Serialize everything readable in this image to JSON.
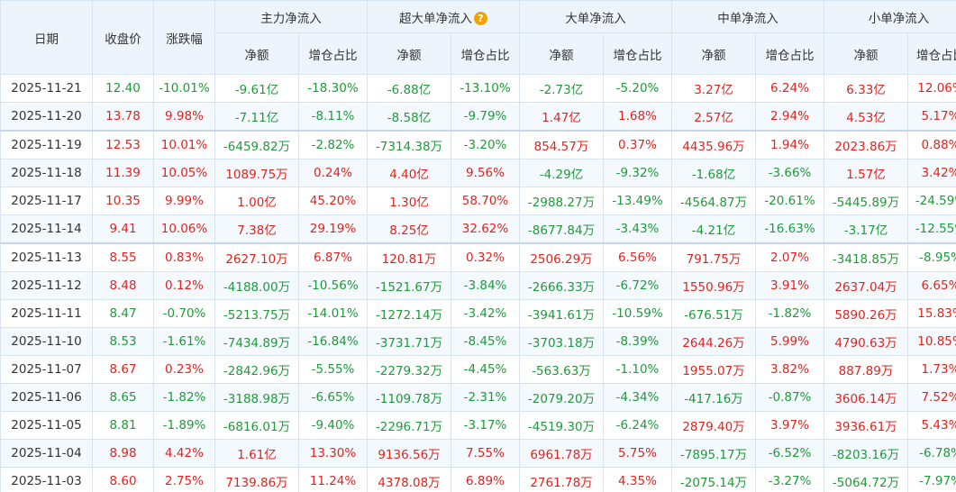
{
  "colors": {
    "up": "#e3221d",
    "down": "#1e9a3a",
    "header_bg": "#edf4fc"
  },
  "header": {
    "date": "日期",
    "close": "收盘价",
    "change": "涨跌幅",
    "groups": [
      {
        "label": "主力净流入",
        "help": false
      },
      {
        "label": "超大单净流入",
        "help": true
      },
      {
        "label": "大单净流入",
        "help": false
      },
      {
        "label": "中单净流入",
        "help": false
      },
      {
        "label": "小单净流入",
        "help": false
      }
    ],
    "sub": {
      "net": "净额",
      "ratio": "增仓占比"
    },
    "help_icon": "question-mark-icon",
    "help_glyph": "?"
  },
  "rows": [
    {
      "date": "2025-11-21",
      "close": "12.40",
      "change": "-10.01%",
      "main": [
        "-9.61亿",
        "-18.30%"
      ],
      "xl": [
        "-6.88亿",
        "-13.10%"
      ],
      "l": [
        "-2.73亿",
        "-5.20%"
      ],
      "m": [
        "3.27亿",
        "6.24%"
      ],
      "s": [
        "6.33亿",
        "12.06%"
      ]
    },
    {
      "date": "2025-11-20",
      "close": "13.78",
      "change": "9.98%",
      "main": [
        "-7.11亿",
        "-8.11%"
      ],
      "xl": [
        "-8.58亿",
        "-9.79%"
      ],
      "l": [
        "1.47亿",
        "1.68%"
      ],
      "m": [
        "2.57亿",
        "2.94%"
      ],
      "s": [
        "4.53亿",
        "5.17%"
      ]
    },
    {
      "date": "2025-11-19",
      "close": "12.53",
      "change": "10.01%",
      "main": [
        "-6459.82万",
        "-2.82%"
      ],
      "xl": [
        "-7314.38万",
        "-3.20%"
      ],
      "l": [
        "854.57万",
        "0.37%"
      ],
      "m": [
        "4435.96万",
        "1.94%"
      ],
      "s": [
        "2023.86万",
        "0.88%"
      ]
    },
    {
      "date": "2025-11-18",
      "close": "11.39",
      "change": "10.05%",
      "main": [
        "1089.75万",
        "0.24%"
      ],
      "xl": [
        "4.40亿",
        "9.56%"
      ],
      "l": [
        "-4.29亿",
        "-9.32%"
      ],
      "m": [
        "-1.68亿",
        "-3.66%"
      ],
      "s": [
        "1.57亿",
        "3.42%"
      ]
    },
    {
      "date": "2025-11-17",
      "close": "10.35",
      "change": "9.99%",
      "main": [
        "1.00亿",
        "45.20%"
      ],
      "xl": [
        "1.30亿",
        "58.70%"
      ],
      "l": [
        "-2988.27万",
        "-13.49%"
      ],
      "m": [
        "-4564.87万",
        "-20.61%"
      ],
      "s": [
        "-5445.89万",
        "-24.59%"
      ]
    },
    {
      "date": "2025-11-14",
      "close": "9.41",
      "change": "10.06%",
      "main": [
        "7.38亿",
        "29.19%"
      ],
      "xl": [
        "8.25亿",
        "32.62%"
      ],
      "l": [
        "-8677.84万",
        "-3.43%"
      ],
      "m": [
        "-4.21亿",
        "-16.63%"
      ],
      "s": [
        "-3.17亿",
        "-12.55%"
      ]
    },
    {
      "date": "2025-11-13",
      "close": "8.55",
      "change": "0.83%",
      "main": [
        "2627.10万",
        "6.87%"
      ],
      "xl": [
        "120.81万",
        "0.32%"
      ],
      "l": [
        "2506.29万",
        "6.56%"
      ],
      "m": [
        "791.75万",
        "2.07%"
      ],
      "s": [
        "-3418.85万",
        "-8.95%"
      ]
    },
    {
      "date": "2025-11-12",
      "close": "8.48",
      "change": "0.12%",
      "main": [
        "-4188.00万",
        "-10.56%"
      ],
      "xl": [
        "-1521.67万",
        "-3.84%"
      ],
      "l": [
        "-2666.33万",
        "-6.72%"
      ],
      "m": [
        "1550.96万",
        "3.91%"
      ],
      "s": [
        "2637.04万",
        "6.65%"
      ]
    },
    {
      "date": "2025-11-11",
      "close": "8.47",
      "change": "-0.70%",
      "main": [
        "-5213.75万",
        "-14.01%"
      ],
      "xl": [
        "-1272.14万",
        "-3.42%"
      ],
      "l": [
        "-3941.61万",
        "-10.59%"
      ],
      "m": [
        "-676.51万",
        "-1.82%"
      ],
      "s": [
        "5890.26万",
        "15.83%"
      ]
    },
    {
      "date": "2025-11-10",
      "close": "8.53",
      "change": "-1.61%",
      "main": [
        "-7434.89万",
        "-16.84%"
      ],
      "xl": [
        "-3731.71万",
        "-8.45%"
      ],
      "l": [
        "-3703.18万",
        "-8.39%"
      ],
      "m": [
        "2644.26万",
        "5.99%"
      ],
      "s": [
        "4790.63万",
        "10.85%"
      ]
    },
    {
      "date": "2025-11-07",
      "close": "8.67",
      "change": "0.23%",
      "main": [
        "-2842.96万",
        "-5.55%"
      ],
      "xl": [
        "-2279.32万",
        "-4.45%"
      ],
      "l": [
        "-563.63万",
        "-1.10%"
      ],
      "m": [
        "1955.07万",
        "3.82%"
      ],
      "s": [
        "887.89万",
        "1.73%"
      ]
    },
    {
      "date": "2025-11-06",
      "close": "8.65",
      "change": "-1.82%",
      "main": [
        "-3188.98万",
        "-6.65%"
      ],
      "xl": [
        "-1109.78万",
        "-2.31%"
      ],
      "l": [
        "-2079.20万",
        "-4.34%"
      ],
      "m": [
        "-417.16万",
        "-0.87%"
      ],
      "s": [
        "3606.14万",
        "7.52%"
      ]
    },
    {
      "date": "2025-11-05",
      "close": "8.81",
      "change": "-1.89%",
      "main": [
        "-6816.01万",
        "-9.40%"
      ],
      "xl": [
        "-2296.71万",
        "-3.17%"
      ],
      "l": [
        "-4519.30万",
        "-6.24%"
      ],
      "m": [
        "2879.40万",
        "3.97%"
      ],
      "s": [
        "3936.61万",
        "5.43%"
      ]
    },
    {
      "date": "2025-11-04",
      "close": "8.98",
      "change": "4.42%",
      "main": [
        "1.61亿",
        "13.30%"
      ],
      "xl": [
        "9136.56万",
        "7.55%"
      ],
      "l": [
        "6961.78万",
        "5.75%"
      ],
      "m": [
        "-7895.17万",
        "-6.52%"
      ],
      "s": [
        "-8203.16万",
        "-6.78%"
      ]
    },
    {
      "date": "2025-11-03",
      "close": "8.60",
      "change": "2.75%",
      "main": [
        "7139.86万",
        "11.24%"
      ],
      "xl": [
        "4378.08万",
        "6.89%"
      ],
      "l": [
        "2761.78万",
        "4.35%"
      ],
      "m": [
        "-2075.14万",
        "-3.27%"
      ],
      "s": [
        "-5064.72万",
        "-7.97%"
      ]
    }
  ]
}
